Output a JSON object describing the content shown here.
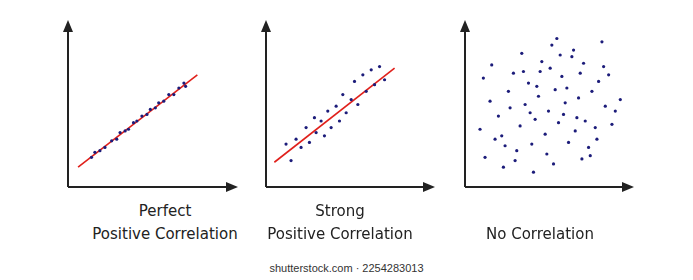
{
  "chart_data": [
    {
      "type": "scatter",
      "title": "Perfect\nPositive Correlation",
      "xlim": [
        0,
        10
      ],
      "ylim": [
        0,
        10
      ],
      "grid": false,
      "tick_labels": false,
      "series": [
        {
          "type": "scatter",
          "color": "#1c1c7a",
          "x": [
            1.4,
            1.6,
            1.9,
            2.2,
            2.6,
            2.9,
            3.1,
            3.4,
            3.6,
            3.9,
            4.1,
            4.4,
            4.7,
            4.9,
            5.2,
            5.4,
            5.7,
            6.0,
            6.3,
            6.6,
            6.9,
            7.0
          ],
          "values": [
            1.8,
            2.1,
            2.2,
            2.4,
            2.8,
            2.9,
            3.3,
            3.4,
            3.5,
            3.9,
            4.0,
            4.3,
            4.4,
            4.7,
            4.8,
            5.1,
            5.2,
            5.6,
            5.6,
            6.0,
            6.3,
            6.1
          ]
        },
        {
          "type": "line",
          "color": "#e0201b",
          "x": [
            0.6,
            7.7
          ],
          "values": [
            1.2,
            6.8
          ]
        }
      ]
    },
    {
      "type": "scatter",
      "title": "Strong\nPositive Correlation",
      "xlim": [
        0,
        10
      ],
      "ylim": [
        0,
        10
      ],
      "grid": false,
      "tick_labels": false,
      "series": [
        {
          "type": "scatter",
          "color": "#1c1c7a",
          "x": [
            1.2,
            1.5,
            1.8,
            2.1,
            2.4,
            2.6,
            2.9,
            3.0,
            3.3,
            3.5,
            3.7,
            3.9,
            4.2,
            4.4,
            4.6,
            4.8,
            5.1,
            5.3,
            5.5,
            5.8,
            6.0,
            6.3,
            6.5,
            6.8,
            7.1
          ],
          "values": [
            2.6,
            1.6,
            2.9,
            2.4,
            3.6,
            2.7,
            4.2,
            3.3,
            4.0,
            3.1,
            4.6,
            3.6,
            4.9,
            4.0,
            5.6,
            4.5,
            5.3,
            6.4,
            5.0,
            6.8,
            5.8,
            7.1,
            6.2,
            7.3,
            6.5
          ]
        },
        {
          "type": "line",
          "color": "#e0201b",
          "x": [
            0.5,
            7.7
          ],
          "values": [
            1.5,
            7.2
          ]
        }
      ]
    },
    {
      "type": "scatter",
      "title": "No Correlation",
      "xlim": [
        0,
        10
      ],
      "ylim": [
        0,
        10
      ],
      "grid": false,
      "tick_labels": false,
      "series": [
        {
          "type": "scatter",
          "color": "#1c1c7a",
          "x": [
            0.9,
            1.2,
            1.5,
            1.1,
            1.8,
            2.0,
            2.3,
            1.6,
            2.6,
            2.2,
            2.9,
            3.1,
            2.7,
            3.4,
            3.0,
            3.6,
            3.3,
            3.8,
            4.0,
            3.5,
            4.2,
            4.4,
            4.1,
            4.6,
            4.8,
            4.3,
            5.0,
            5.2,
            4.9,
            5.4,
            5.1,
            5.6,
            5.3,
            5.8,
            6.0,
            5.5,
            6.2,
            5.9,
            6.4,
            6.6,
            6.1,
            6.8,
            7.0,
            6.5,
            7.2,
            6.9,
            7.4,
            7.6,
            7.1,
            7.8,
            8.0,
            7.5,
            8.2,
            8.4,
            7.9,
            8.6,
            8.8,
            8.3,
            9.0,
            9.3,
            5.7,
            4.5,
            3.9,
            6.7,
            2.4
          ],
          "values": [
            3.5,
            1.8,
            5.2,
            6.6,
            2.9,
            4.3,
            1.2,
            7.4,
            5.8,
            3.1,
            6.9,
            2.2,
            4.8,
            8.1,
            1.6,
            5.0,
            3.7,
            6.3,
            2.6,
            7.0,
            4.1,
            5.5,
            0.9,
            7.6,
            3.2,
            6.1,
            4.6,
            8.6,
            2.0,
            5.9,
            7.2,
            3.9,
            1.4,
            6.7,
            5.1,
            9.0,
            2.7,
            4.4,
            7.9,
            3.4,
            6.0,
            5.4,
            1.7,
            8.3,
            4.0,
            6.9,
            2.4,
            5.8,
            7.5,
            3.6,
            6.4,
            1.9,
            8.8,
            4.9,
            2.9,
            6.8,
            3.8,
            7.3,
            4.6,
            5.3,
            8.0,
            7.0,
            4.5,
            4.2,
            2.5
          ]
        }
      ]
    }
  ],
  "caption": "shutterstock.com · 2254283013"
}
